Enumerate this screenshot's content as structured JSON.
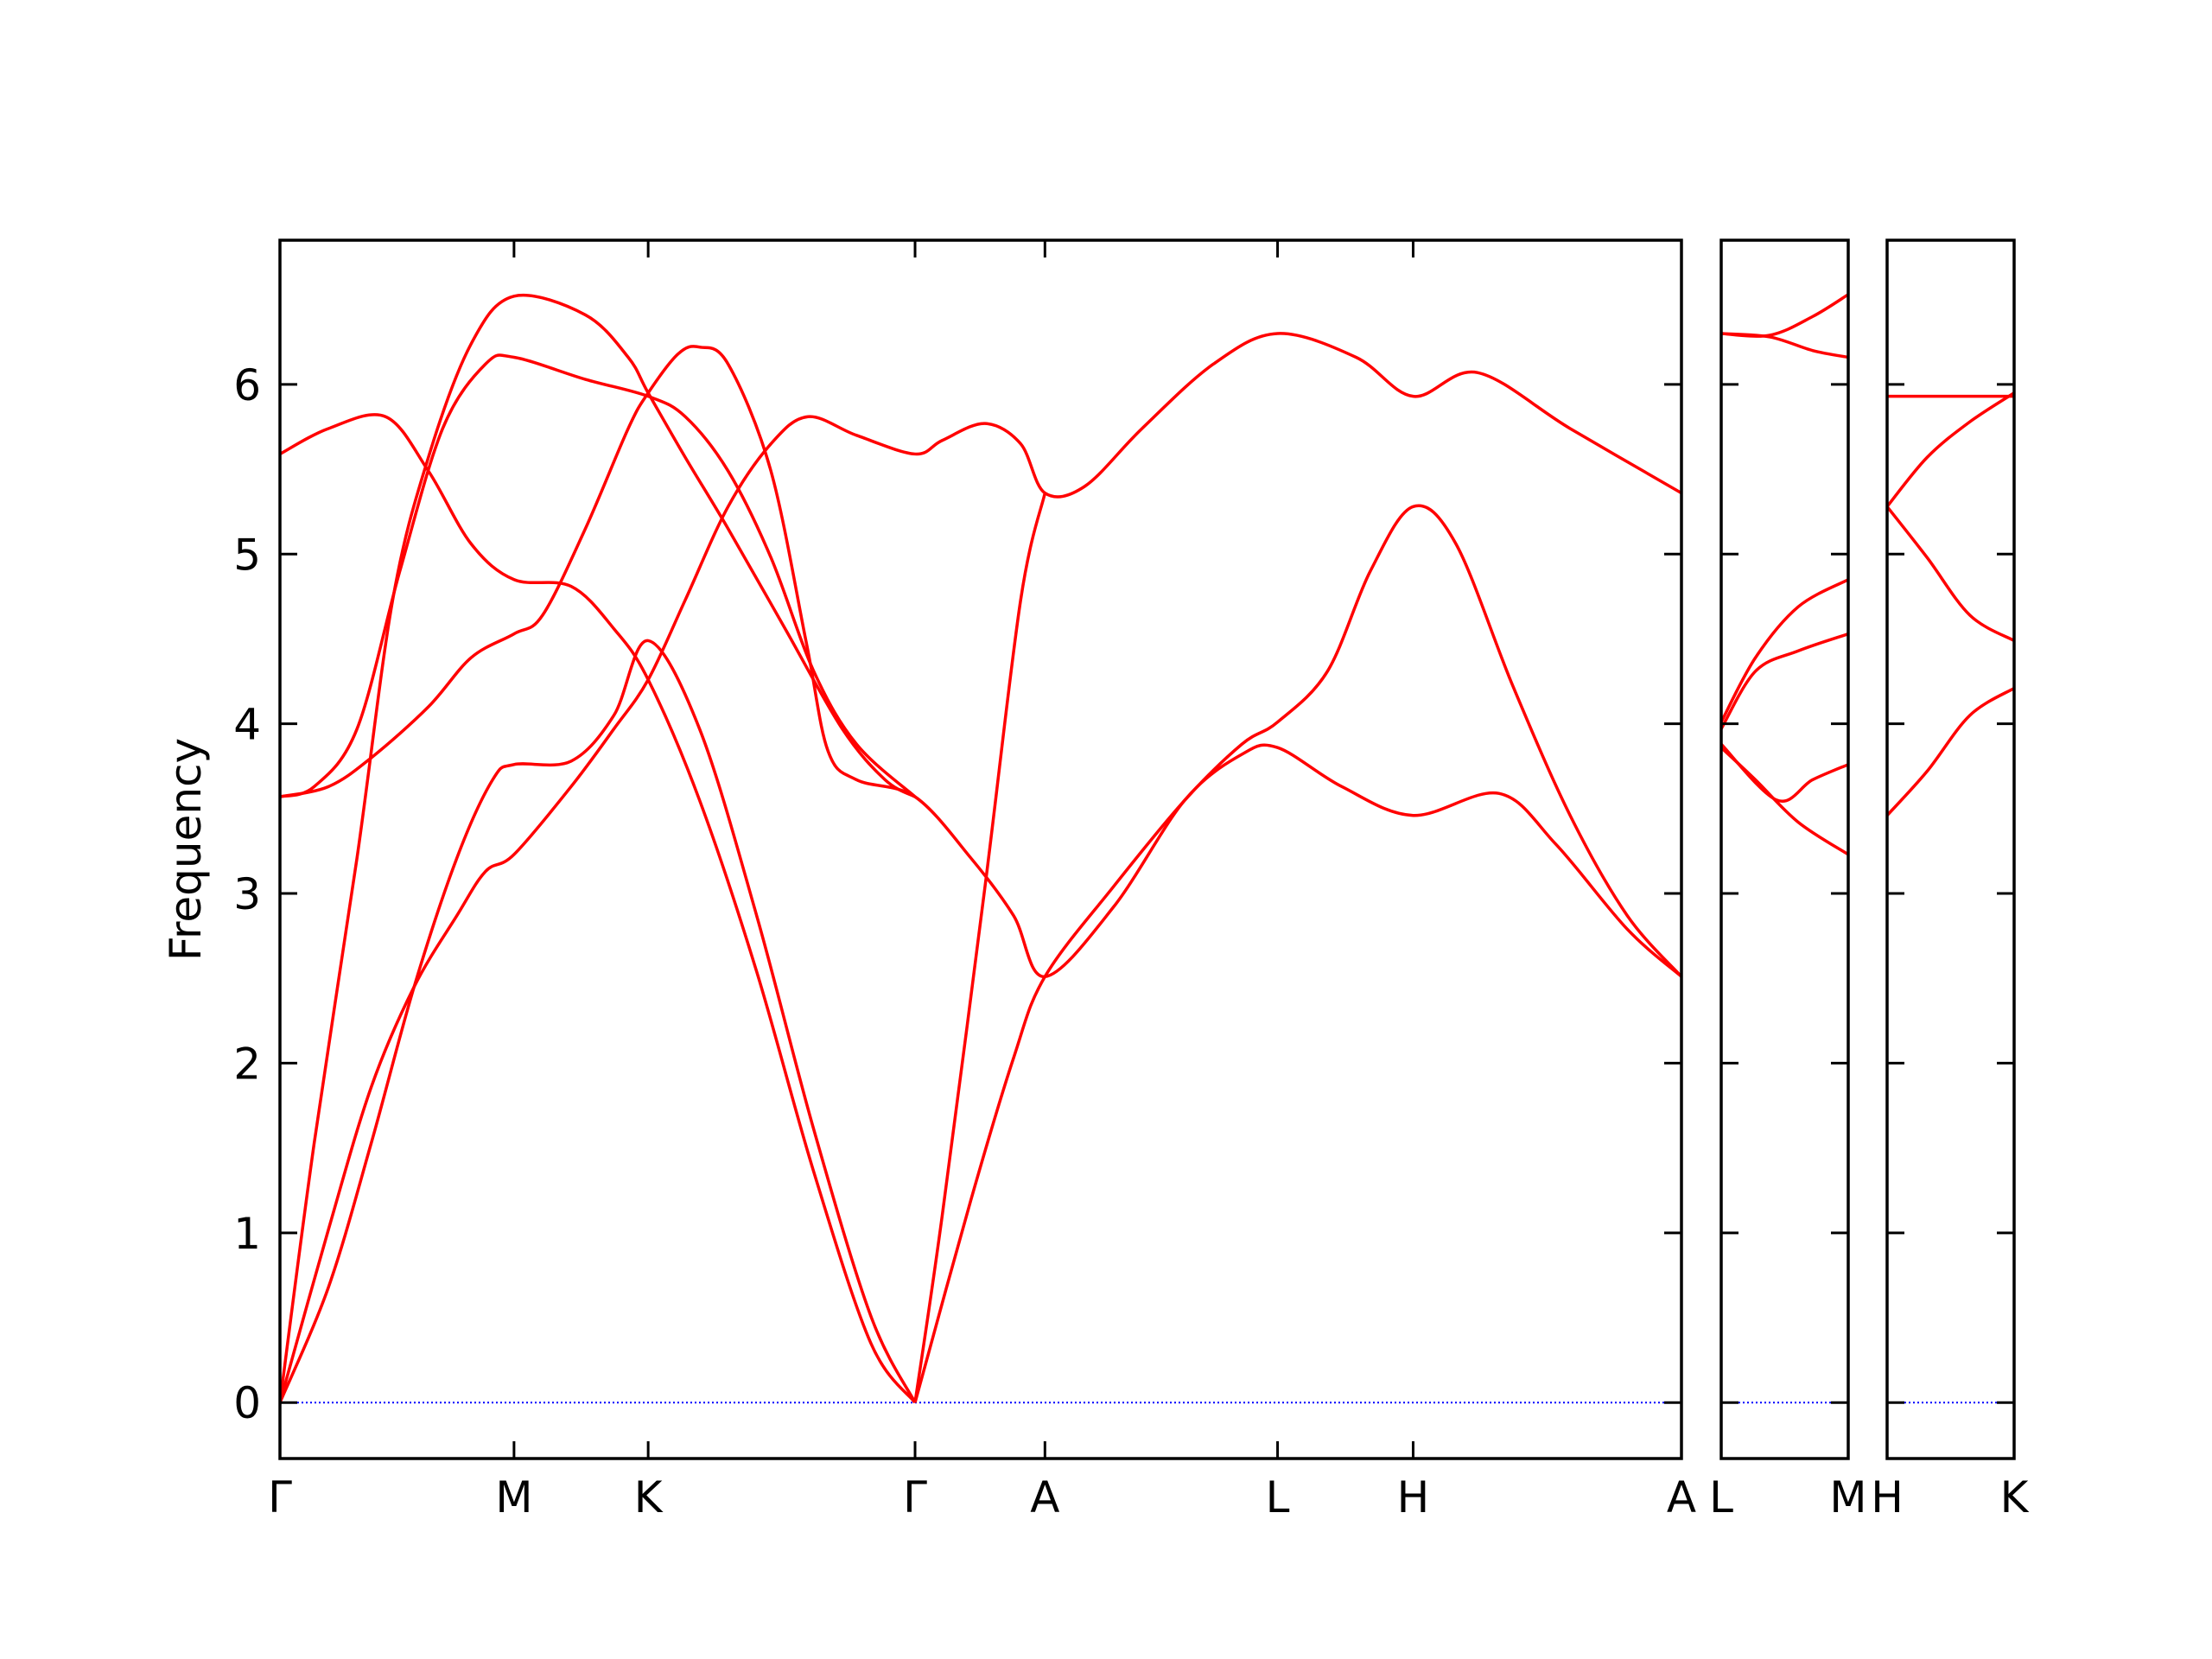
{
  "chart_data": [
    {
      "type": "line",
      "ylabel": "Frequency",
      "xlim": [
        0,
        9.82
      ],
      "ylim": [
        -0.33,
        6.85
      ],
      "xticks": [
        {
          "value": 0,
          "label": "Γ"
        },
        {
          "value": 1.64,
          "label": "M"
        },
        {
          "value": 2.58,
          "label": "K"
        },
        {
          "value": 4.45,
          "label": "Γ"
        },
        {
          "value": 5.36,
          "label": "A"
        },
        {
          "value": 6.99,
          "label": "L"
        },
        {
          "value": 7.94,
          "label": "H"
        },
        {
          "value": 9.82,
          "label": "A"
        }
      ],
      "yticks": [
        0,
        1,
        2,
        3,
        4,
        5,
        6
      ],
      "show_ytick_labels": true,
      "grid": false,
      "zero_line": {
        "value": 0,
        "color": "#0000ff"
      },
      "series": [
        {
          "color": "#ff0000",
          "x": [
            0,
            0.34,
            0.74,
            1.04,
            1.34,
            1.64,
            2.04,
            2.34,
            2.58,
            2.94,
            3.34,
            3.74,
            4.14,
            4.45
          ],
          "values": [
            5.59,
            5.74,
            5.81,
            5.49,
            5.06,
            4.85,
            4.81,
            4.56,
            4.26,
            3.55,
            2.54,
            1.36,
            0.35,
            0
          ]
        },
        {
          "color": "#ff0000",
          "x": [
            0,
            0.24,
            0.54,
            0.79,
            1.04,
            1.34,
            1.64,
            2.14,
            2.44,
            2.58,
            2.84,
            3.14,
            3.54,
            3.94,
            4.24,
            4.45
          ],
          "values": [
            0,
            1.53,
            3.21,
            4.73,
            5.57,
            6.24,
            6.52,
            6.41,
            6.16,
            5.95,
            5.57,
            5.15,
            4.56,
            3.97,
            3.67,
            3.57
          ]
        },
        {
          "color": "#ff0000",
          "x": [
            0,
            0.34,
            0.64,
            0.94,
            1.24,
            1.44,
            1.64,
            2.04,
            2.34,
            2.58,
            2.84,
            3.14,
            3.44,
            3.7,
            4.04,
            4.45,
            4.64,
            4.94,
            5.19,
            5.36,
            5.64,
            6.04,
            6.54,
            6.99,
            7.54,
            7.94,
            8.39,
            9.04,
            9.82
          ],
          "values": [
            0,
            1.02,
            1.86,
            2.45,
            2.87,
            3.13,
            3.23,
            3.63,
            3.97,
            4.26,
            4.73,
            5.28,
            5.65,
            5.81,
            5.7,
            5.59,
            5.67,
            5.77,
            5.65,
            5.36,
            5.4,
            5.74,
            6.12,
            6.3,
            6.16,
            5.93,
            6.07,
            5.74,
            5.36
          ]
        },
        {
          "color": "#ff0000",
          "x": [
            0,
            0.34,
            0.64,
            0.94,
            1.24,
            1.49,
            1.64,
            2.04,
            2.34,
            2.58,
            2.94,
            3.34,
            3.74,
            4.14,
            4.45
          ],
          "values": [
            0,
            0.68,
            1.53,
            2.45,
            3.21,
            3.67,
            3.76,
            3.78,
            4.05,
            4.49,
            3.97,
            2.87,
            1.61,
            0.51,
            0
          ]
        },
        {
          "color": "#ff0000",
          "x": [
            0,
            0.34,
            0.64,
            1.04,
            1.34,
            1.64,
            1.84,
            2.14,
            2.44,
            2.58,
            2.79,
            2.94,
            3.14,
            3.44,
            3.69,
            3.84,
            4.04,
            4.45,
            4.84,
            5.14,
            5.36,
            5.84,
            6.34,
            6.74,
            6.99,
            7.44,
            7.94,
            8.54,
            8.94,
            9.44,
            9.82
          ],
          "values": [
            3.57,
            3.63,
            3.8,
            4.1,
            4.39,
            4.53,
            4.64,
            5.15,
            5.74,
            5.95,
            6.18,
            6.22,
            6.12,
            5.49,
            4.47,
            3.84,
            3.67,
            3.57,
            3.21,
            2.87,
            2.51,
            2.92,
            3.55,
            3.82,
            3.86,
            3.63,
            3.46,
            3.59,
            3.29,
            2.79,
            2.51
          ]
        },
        {
          "color": "#ff0000",
          "x": [
            0,
            0.24,
            0.54,
            0.84,
            1.14,
            1.44,
            1.64,
            2.14,
            2.58,
            2.84,
            3.14,
            3.44,
            3.74,
            4.04,
            4.45
          ],
          "values": [
            3.57,
            3.63,
            3.97,
            4.9,
            5.74,
            6.12,
            6.16,
            6.03,
            5.93,
            5.81,
            5.49,
            4.98,
            4.31,
            3.88,
            3.57
          ]
        },
        {
          "color": "#ff0000",
          "x": [
            4.45,
            4.64,
            4.94,
            5.19,
            5.36
          ],
          "values": [
            0,
            1.1,
            3.04,
            4.73,
            5.36
          ]
        },
        {
          "color": "#ff0000",
          "x": [
            4.45,
            4.84,
            5.14,
            5.36,
            5.84,
            6.34,
            6.74,
            6.99,
            7.34,
            7.64,
            7.94,
            8.24,
            8.64,
            9.04,
            9.44,
            9.82
          ],
          "values": [
            0,
            1.19,
            2.03,
            2.51,
            3.04,
            3.55,
            3.88,
            4.01,
            4.31,
            4.9,
            5.28,
            5.06,
            4.22,
            3.46,
            2.87,
            2.51
          ]
        }
      ]
    },
    {
      "type": "line",
      "xlim": [
        0,
        0.89
      ],
      "ylim": [
        -0.33,
        6.85
      ],
      "xticks": [
        {
          "value": 0,
          "label": "L"
        },
        {
          "value": 0.89,
          "label": "M"
        }
      ],
      "yticks": [
        0,
        1,
        2,
        3,
        4,
        5,
        6
      ],
      "show_ytick_labels": false,
      "grid": false,
      "zero_line": {
        "value": 0,
        "color": "#0000ff"
      },
      "series": [
        {
          "color": "#ff0000",
          "x": [
            0,
            0.34,
            0.64,
            0.89
          ],
          "values": [
            6.3,
            6.29,
            6.4,
            6.53
          ]
        },
        {
          "color": "#ff0000",
          "x": [
            0,
            0.34,
            0.64,
            0.89
          ],
          "values": [
            6.3,
            6.28,
            6.2,
            6.16
          ]
        },
        {
          "color": "#ff0000",
          "x": [
            0,
            0.24,
            0.54,
            0.89
          ],
          "values": [
            4.01,
            4.39,
            4.69,
            4.85
          ]
        },
        {
          "color": "#ff0000",
          "x": [
            0,
            0.24,
            0.54,
            0.89
          ],
          "values": [
            3.97,
            4.31,
            4.43,
            4.53
          ]
        },
        {
          "color": "#ff0000",
          "x": [
            0,
            0.39,
            0.64,
            0.89
          ],
          "values": [
            3.88,
            3.55,
            3.67,
            3.76
          ]
        },
        {
          "color": "#ff0000",
          "x": [
            0,
            0.24,
            0.54,
            0.89
          ],
          "values": [
            3.86,
            3.67,
            3.42,
            3.23
          ]
        }
      ]
    },
    {
      "type": "line",
      "xlim": [
        0,
        0.89
      ],
      "ylim": [
        -0.33,
        6.85
      ],
      "xticks": [
        {
          "value": 0,
          "label": "H"
        },
        {
          "value": 0.89,
          "label": "K"
        }
      ],
      "yticks": [
        0,
        1,
        2,
        3,
        4,
        5,
        6
      ],
      "show_ytick_labels": false,
      "grid": false,
      "zero_line": {
        "value": 0,
        "color": "#0000ff"
      },
      "series": [
        {
          "color": "#ff0000",
          "x": [
            0,
            0.89
          ],
          "values": [
            5.93,
            5.93
          ]
        },
        {
          "color": "#ff0000",
          "x": [
            0,
            0.28,
            0.58,
            0.89
          ],
          "values": [
            5.28,
            5.57,
            5.78,
            5.95
          ]
        },
        {
          "color": "#ff0000",
          "x": [
            0,
            0.28,
            0.58,
            0.89
          ],
          "values": [
            5.28,
            4.98,
            4.64,
            4.49
          ]
        },
        {
          "color": "#ff0000",
          "x": [
            0,
            0.28,
            0.58,
            0.89
          ],
          "values": [
            3.46,
            3.72,
            4.05,
            4.21
          ]
        }
      ]
    }
  ]
}
